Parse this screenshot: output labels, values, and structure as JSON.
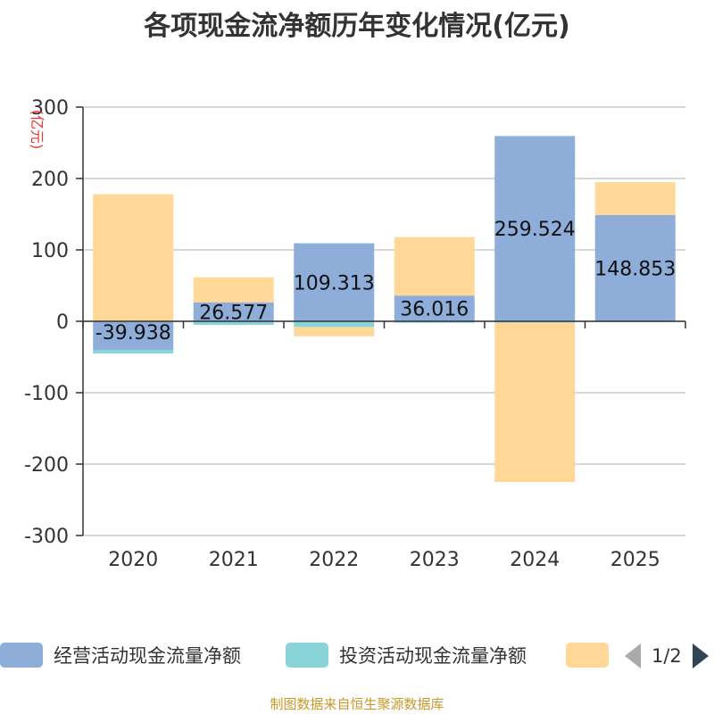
{
  "chart_data": {
    "type": "bar",
    "stacked": true,
    "title": "各项现金流净额历年变化情况(亿元)",
    "ylabel": "(亿元)",
    "ylim": [
      -300,
      300
    ],
    "yticks": [
      300,
      200,
      100,
      0,
      -100,
      -200,
      -300
    ],
    "categories": [
      "2020",
      "2021",
      "2022",
      "2023",
      "2024",
      "2025"
    ],
    "grid": true,
    "legend_position": "bottom",
    "series": [
      {
        "name": "经营活动现金流量净额",
        "color": "#8eadd9",
        "values": [
          -39.938,
          26.577,
          109.313,
          36.016,
          259.524,
          148.853
        ],
        "labels": [
          "-39.938",
          "26.577",
          "109.313",
          "36.016",
          "259.524",
          "148.853"
        ]
      },
      {
        "name": "投资活动现金流量净额",
        "color": "#88d4d8",
        "values": [
          -5,
          -5,
          -8,
          -2,
          -2,
          -1
        ]
      },
      {
        "name": "",
        "color": "#ffd898",
        "values": [
          178,
          35,
          -13,
          82,
          -223,
          46
        ]
      }
    ]
  },
  "legend": {
    "page": "1/2"
  },
  "source_note": "制图数据来自恒生聚源数据库"
}
